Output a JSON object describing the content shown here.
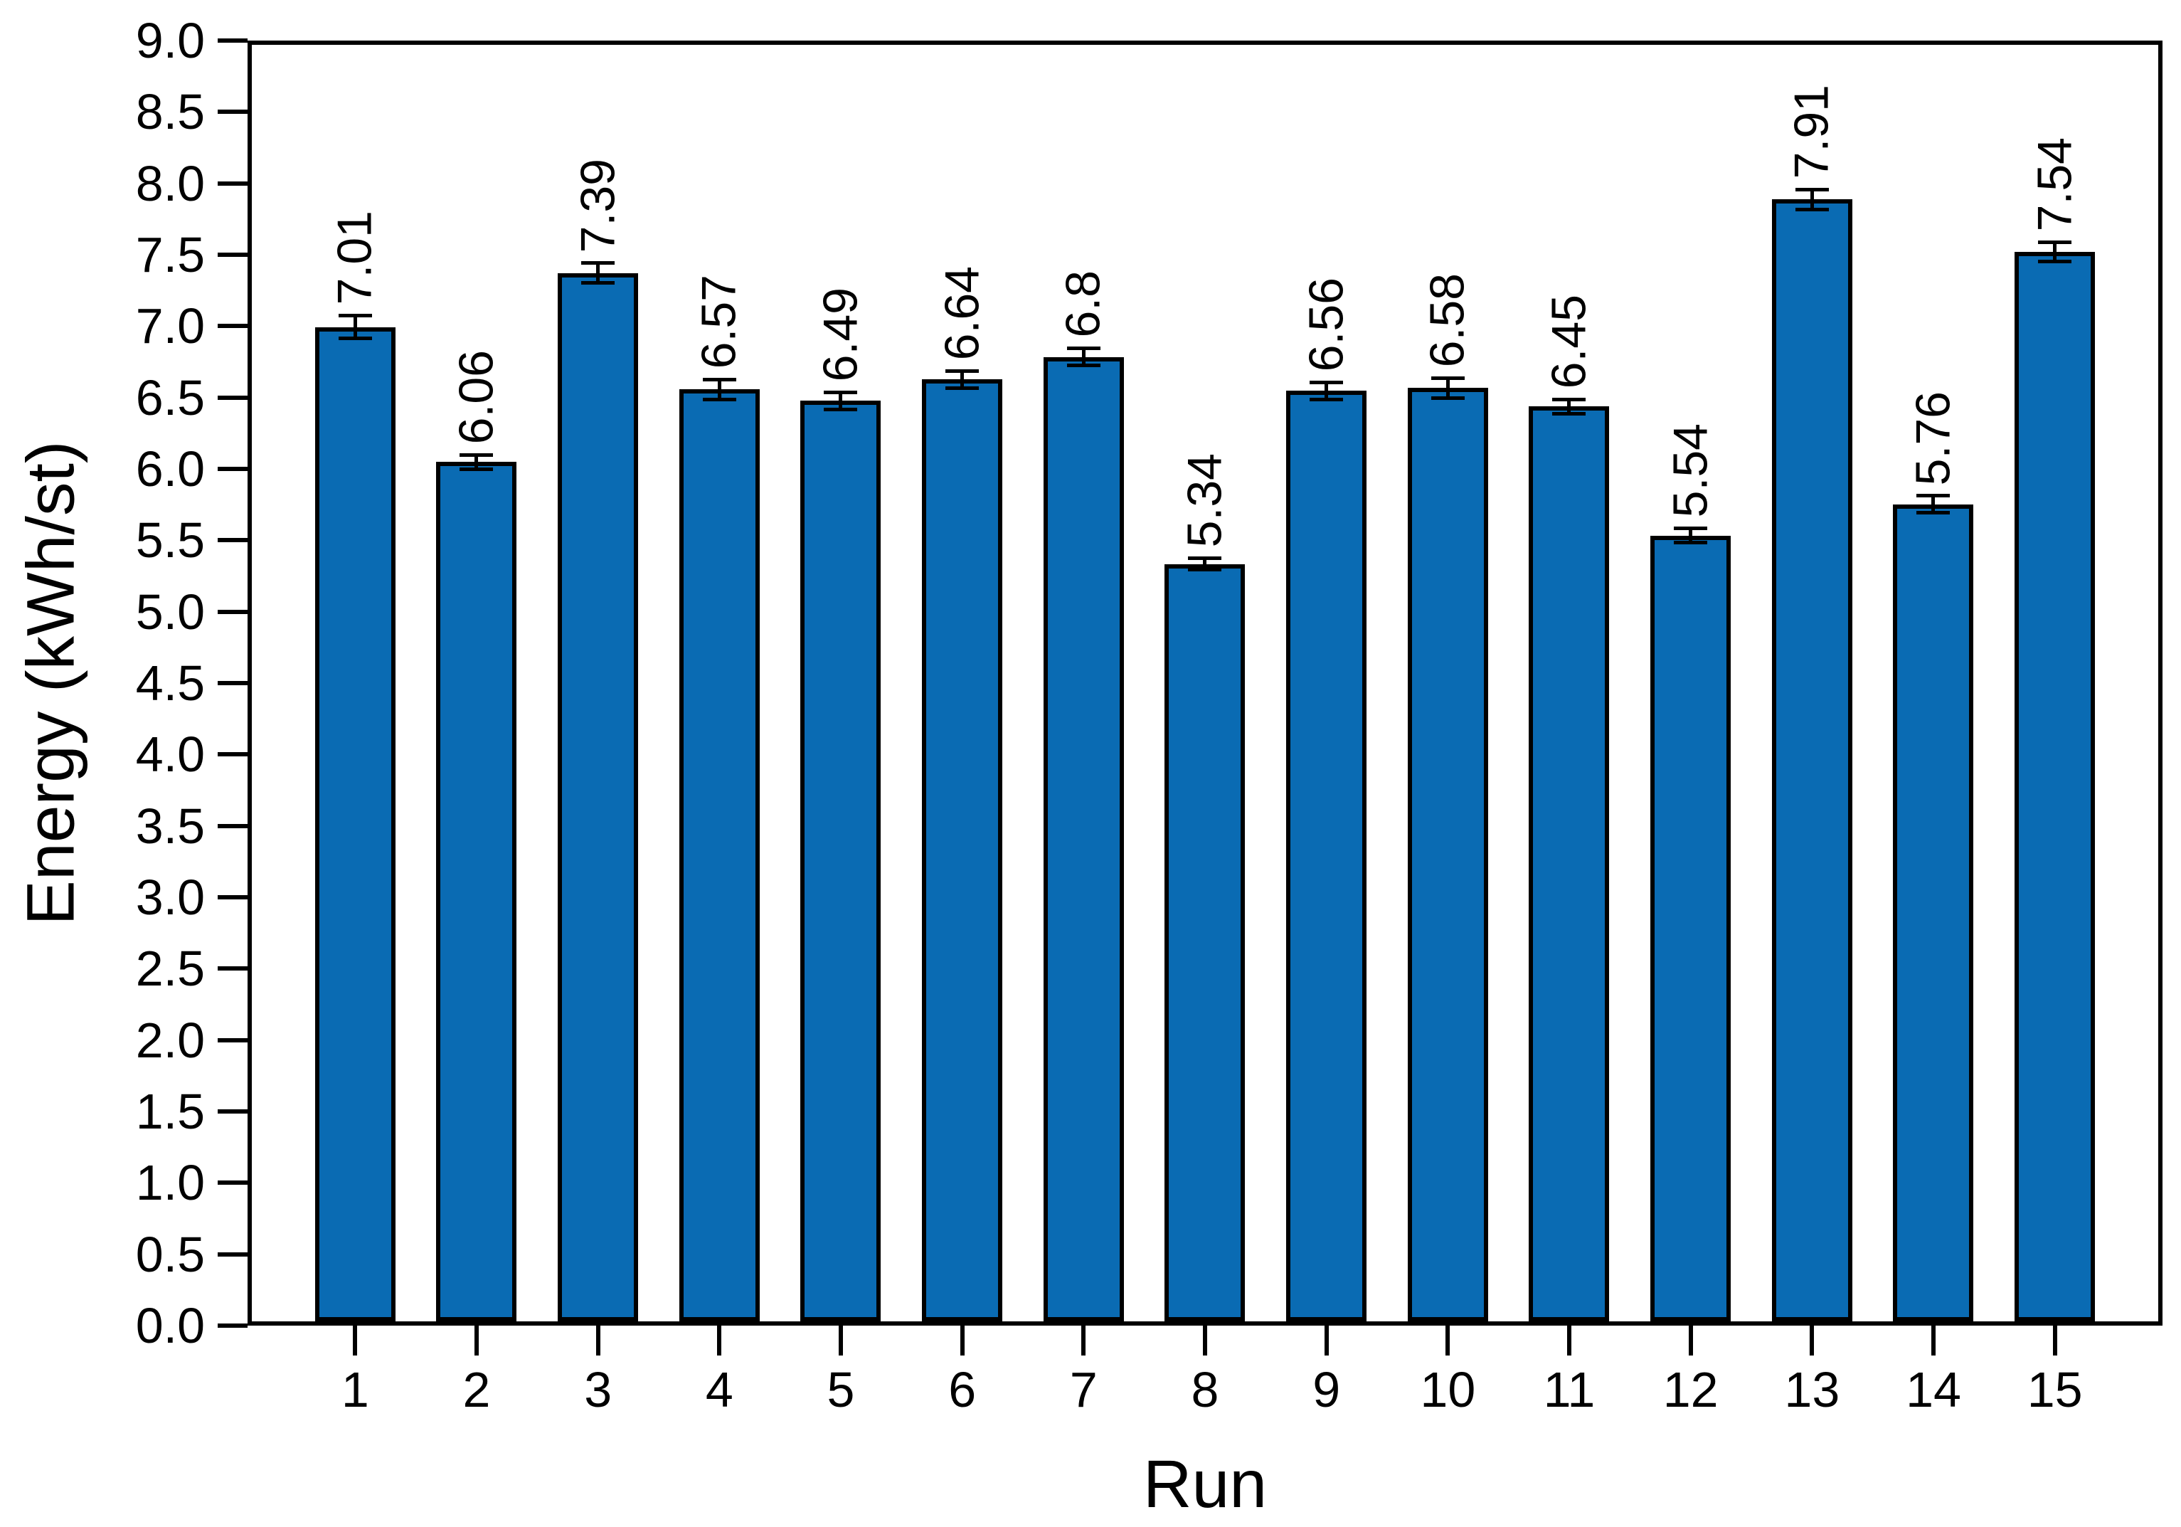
{
  "figure": {
    "background_color": "#ffffff",
    "frame_color": "#000000"
  },
  "chart_data": {
    "type": "bar",
    "title": "",
    "xlabel": "Run",
    "ylabel": "Energy (kWh/st)",
    "categories": [
      "1",
      "2",
      "3",
      "4",
      "5",
      "6",
      "7",
      "8",
      "9",
      "10",
      "11",
      "12",
      "13",
      "14",
      "15"
    ],
    "values": [
      7.01,
      6.06,
      7.39,
      6.57,
      6.49,
      6.64,
      6.8,
      5.34,
      6.56,
      6.58,
      6.45,
      5.54,
      7.91,
      5.76,
      7.54
    ],
    "value_labels": [
      "7.01",
      "6.06",
      "7.39",
      "6.57",
      "6.49",
      "6.64",
      "6.8",
      "5.34",
      "6.56",
      "6.58",
      "6.45",
      "5.54",
      "7.91",
      "5.76",
      "7.54"
    ],
    "error_bars": [
      0.08,
      0.05,
      0.07,
      0.07,
      0.06,
      0.06,
      0.06,
      0.04,
      0.06,
      0.07,
      0.05,
      0.05,
      0.07,
      0.06,
      0.07
    ],
    "ylim": [
      0.0,
      9.0
    ],
    "ytick_step": 0.5,
    "ytick_labels": [
      "0.0",
      "0.5",
      "1.0",
      "1.5",
      "2.0",
      "2.5",
      "3.0",
      "3.5",
      "4.0",
      "4.5",
      "5.0",
      "5.5",
      "6.0",
      "6.5",
      "7.0",
      "7.5",
      "8.0",
      "8.5",
      "9.0"
    ],
    "grid": false,
    "legend": null,
    "bar_color": "#0a6bb3",
    "bar_edge_color": "#000000",
    "error_bar_color": "#000000",
    "value_label_rotation_deg": 90
  }
}
